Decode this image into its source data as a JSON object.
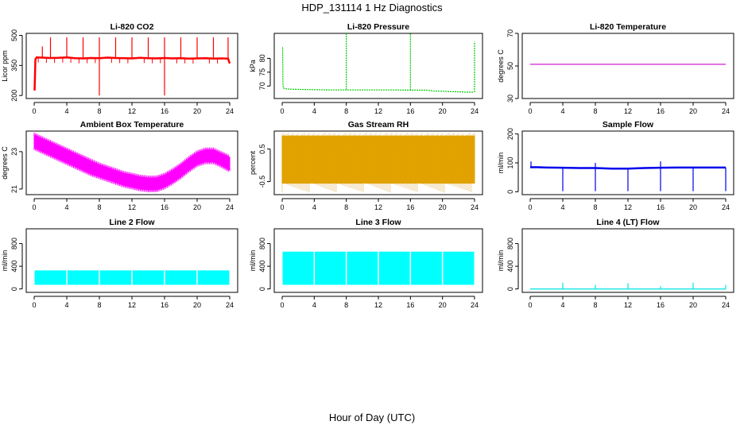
{
  "title": "HDP_131114  1 Hz Diagnostics",
  "xlabel": "Hour of Day (UTC)",
  "chart_data": [
    {
      "type": "line",
      "title": "Li-820 CO2",
      "ylabel": "Licor ppm",
      "color": "#ff0000",
      "xlim": [
        0,
        24
      ],
      "ylim": [
        185,
        510
      ],
      "yticks": [
        200,
        350,
        500
      ],
      "xticks": [
        0,
        4,
        8,
        12,
        16,
        20,
        24
      ],
      "x": [
        0.05,
        0.15,
        0.3,
        1,
        2,
        3,
        4,
        5,
        6,
        7,
        8,
        9,
        10,
        11,
        12,
        13,
        14,
        15,
        16,
        17,
        18,
        19,
        20,
        21,
        22,
        23,
        23.8,
        24
      ],
      "y": [
        225,
        380,
        390,
        389,
        387,
        388,
        390,
        386,
        385,
        387,
        386,
        389,
        387,
        386,
        385,
        388,
        386,
        385,
        387,
        385,
        386,
        384,
        385,
        386,
        384,
        385,
        384,
        360
      ],
      "spikes_high": [
        [
          1,
          445
        ],
        [
          2,
          490
        ],
        [
          4,
          490
        ],
        [
          6,
          490
        ],
        [
          8,
          490
        ],
        [
          10,
          490
        ],
        [
          12,
          490
        ],
        [
          14,
          490
        ],
        [
          16,
          490
        ],
        [
          18,
          490
        ],
        [
          20,
          490
        ],
        [
          22,
          490
        ],
        [
          23.8,
          490
        ]
      ],
      "spikes_low": [
        [
          8,
          200
        ],
        [
          16,
          200
        ]
      ]
    },
    {
      "type": "line",
      "title": "Li-820 Pressure",
      "ylabel": "kPa",
      "color": "#00cc00",
      "xlim": [
        0,
        24
      ],
      "ylim": [
        65.5,
        89
      ],
      "yticks": [
        70,
        75,
        80
      ],
      "xticks": [
        0,
        4,
        8,
        12,
        16,
        20,
        24
      ],
      "x": [
        0.05,
        0.1,
        0.2,
        0.4,
        1,
        2,
        4,
        6,
        8,
        10,
        12,
        14,
        16,
        18,
        19,
        20,
        21,
        22,
        23,
        23.9
      ],
      "y": [
        84,
        70,
        69.2,
        69,
        68.9,
        68.8,
        68.7,
        68.6,
        68.6,
        68.6,
        68.6,
        68.6,
        68.5,
        68.5,
        68.2,
        68.1,
        68.0,
        67.9,
        67.8,
        67.8
      ],
      "spikes_high": [
        [
          8,
          89
        ],
        [
          16,
          89
        ],
        [
          24,
          86
        ]
      ],
      "spikes_low": []
    },
    {
      "type": "line",
      "title": "Li-820 Temperature",
      "ylabel": "degrees C",
      "color": "#cc00cc",
      "xlim": [
        0,
        24
      ],
      "ylim": [
        30,
        70
      ],
      "yticks": [
        30,
        50,
        70
      ],
      "xticks": [
        0,
        4,
        8,
        12,
        16,
        20,
        24
      ],
      "x": [
        0,
        24
      ],
      "y": [
        51,
        51
      ],
      "spikes_high": [],
      "spikes_low": []
    },
    {
      "type": "band",
      "title": "Ambient Box Temperature",
      "ylabel": "degrees C",
      "color": "#ff00ff",
      "xlim": [
        0,
        24
      ],
      "ylim": [
        20.7,
        24.1
      ],
      "yticks": [
        21,
        23
      ],
      "xticks": [
        0,
        4,
        8,
        12,
        16,
        20,
        24
      ],
      "x": [
        0,
        1,
        2,
        3,
        4,
        5,
        6,
        7,
        8,
        9,
        10,
        11,
        12,
        13,
        14,
        15,
        16,
        17,
        18,
        19,
        20,
        21,
        22,
        23,
        24
      ],
      "y_low": [
        23.2,
        23.0,
        22.8,
        22.6,
        22.4,
        22.2,
        22.0,
        21.8,
        21.65,
        21.5,
        21.35,
        21.2,
        21.1,
        21.0,
        20.95,
        20.95,
        21.1,
        21.35,
        21.65,
        22.0,
        22.3,
        22.45,
        22.45,
        22.25,
        22.0
      ],
      "y_high": [
        23.9,
        23.7,
        23.5,
        23.3,
        23.1,
        22.9,
        22.7,
        22.5,
        22.3,
        22.15,
        22.0,
        21.85,
        21.75,
        21.65,
        21.6,
        21.6,
        21.75,
        22.0,
        22.3,
        22.65,
        22.95,
        23.1,
        23.1,
        22.9,
        22.7
      ]
    },
    {
      "type": "band",
      "title": "Gas Stream RH",
      "ylabel": "percent",
      "color": "#e6a800",
      "xlim": [
        0,
        24
      ],
      "ylim": [
        -0.9,
        1.05
      ],
      "yticks": [
        -0.5,
        0.5
      ],
      "xticks": [
        0,
        4,
        8,
        12,
        16,
        20,
        24
      ],
      "x": [
        0,
        24
      ],
      "y_low": [
        -0.55,
        -0.55
      ],
      "y_high": [
        0.9,
        0.9
      ]
    },
    {
      "type": "line",
      "title": "Sample Flow",
      "ylabel": "ml/min",
      "color": "#0000ee",
      "xlim": [
        0,
        24
      ],
      "ylim": [
        -10,
        210
      ],
      "yticks": [
        0,
        100,
        200
      ],
      "xticks": [
        0,
        4,
        8,
        12,
        16,
        20,
        24
      ],
      "x": [
        0,
        1,
        2,
        4,
        6,
        8,
        10,
        12,
        14,
        16,
        18,
        20,
        22,
        24
      ],
      "y": [
        85,
        85,
        84,
        83,
        82,
        82,
        80,
        80,
        82,
        83,
        84,
        84,
        84,
        84
      ],
      "spikes_high": [
        [
          0.1,
          105
        ],
        [
          8,
          100
        ],
        [
          16,
          105
        ]
      ],
      "spikes_low": [
        [
          4,
          2
        ],
        [
          8,
          2
        ],
        [
          12,
          2
        ],
        [
          16,
          2
        ],
        [
          20,
          2
        ],
        [
          24,
          2
        ]
      ]
    },
    {
      "type": "band",
      "title": "Line 2 Flow",
      "ylabel": "ml/min",
      "color": "#00ffff",
      "xlim": [
        0,
        24
      ],
      "ylim": [
        -60,
        1060
      ],
      "yticks": [
        0,
        400,
        800
      ],
      "xticks": [
        0,
        4,
        8,
        12,
        16,
        20,
        24
      ],
      "x": [
        0.1,
        23.9
      ],
      "y_low": [
        80,
        80
      ],
      "y_high": [
        320,
        320
      ],
      "gaps": [
        4,
        8,
        12,
        16,
        20
      ]
    },
    {
      "type": "band",
      "title": "Line 3 Flow",
      "ylabel": "ml/min",
      "color": "#00ffff",
      "xlim": [
        0,
        24
      ],
      "ylim": [
        -60,
        1060
      ],
      "yticks": [
        0,
        400,
        800
      ],
      "xticks": [
        0,
        4,
        8,
        12,
        16,
        20,
        24
      ],
      "x": [
        0.1,
        23.9
      ],
      "y_low": [
        80,
        80
      ],
      "y_high": [
        650,
        650
      ],
      "gaps": [
        4,
        8,
        12,
        16,
        20
      ]
    },
    {
      "type": "line",
      "title": "Line 4 (LT) Flow",
      "ylabel": "ml/min",
      "color": "#00e5e5",
      "xlim": [
        0,
        24
      ],
      "ylim": [
        -60,
        1060
      ],
      "yticks": [
        0,
        400,
        800
      ],
      "xticks": [
        0,
        4,
        8,
        12,
        16,
        20,
        24
      ],
      "x": [
        0,
        24
      ],
      "y": [
        0,
        0
      ],
      "spikes_high": [
        [
          4,
          110
        ],
        [
          8,
          70
        ],
        [
          12,
          100
        ],
        [
          16,
          50
        ],
        [
          20,
          110
        ],
        [
          24,
          70
        ]
      ],
      "spikes_low": []
    }
  ]
}
